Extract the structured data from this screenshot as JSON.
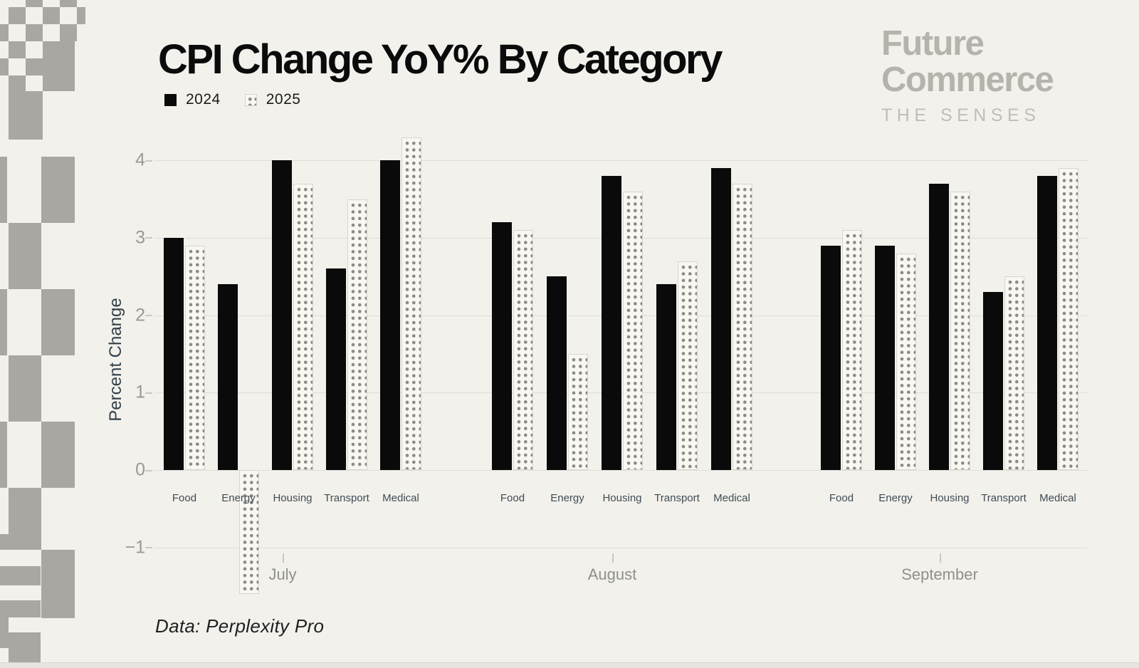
{
  "title": "CPI Change YoY% By Category",
  "legend": {
    "items": [
      {
        "label": "2024",
        "style": "solid"
      },
      {
        "label": "2025",
        "style": "dotted"
      }
    ]
  },
  "brand": {
    "line1": "Future",
    "line2": "Commerce",
    "tagline": "THE SENSES"
  },
  "y_axis": {
    "label": "Percent Change",
    "ticks": [
      {
        "value": 4,
        "label": "4"
      },
      {
        "value": 3,
        "label": "3"
      },
      {
        "value": 2,
        "label": "2"
      },
      {
        "value": 1,
        "label": "1"
      },
      {
        "value": 0,
        "label": "0"
      },
      {
        "value": -1,
        "label": "−1"
      }
    ]
  },
  "source": "Data: Perplexity Pro",
  "chart_data": {
    "type": "bar",
    "title": "CPI Change YoY% By Category",
    "ylabel": "Percent Change",
    "ylim": [
      -1.6,
      4.4
    ],
    "grid": true,
    "legend_position": "top-left",
    "group_labels": [
      "July",
      "August",
      "September"
    ],
    "categories": [
      "Food",
      "Energy",
      "Housing",
      "Transport",
      "Medical"
    ],
    "series": [
      {
        "name": "2024",
        "style": "solid-black",
        "values": [
          [
            3.0,
            2.4,
            4.0,
            2.6,
            4.0
          ],
          [
            3.2,
            2.5,
            3.8,
            2.4,
            3.9
          ],
          [
            2.9,
            2.9,
            3.7,
            2.3,
            3.8
          ]
        ]
      },
      {
        "name": "2025",
        "style": "dotted",
        "values": [
          [
            2.9,
            -1.6,
            3.7,
            3.5,
            4.3
          ],
          [
            3.1,
            1.5,
            3.6,
            2.7,
            3.7
          ],
          [
            3.1,
            2.8,
            3.6,
            2.5,
            3.9
          ]
        ]
      }
    ]
  },
  "colors": {
    "background": "#f2f1ec",
    "decor_gray": "#a8a7a1",
    "bar_2024": "#0a0a0a",
    "bar_2025_dot": "#8b8a84",
    "bar_2025_bg": "#f8f7f2",
    "gridline": "#deddd6",
    "tick_label": "#9a9993",
    "category_label": "#414c54",
    "month_label": "#90908a",
    "axis_title": "#32404a",
    "brand_gray": "#b4b3ac",
    "title_black": "#0b0b0b"
  },
  "decor": {
    "rects": [
      [
        36,
        0,
        24,
        10
      ],
      [
        84,
        0,
        24,
        10
      ],
      [
        12,
        10,
        24,
        24
      ],
      [
        60,
        10,
        24,
        24
      ],
      [
        108,
        10,
        12,
        24
      ],
      [
        0,
        34,
        12,
        24
      ],
      [
        36,
        34,
        24,
        24
      ],
      [
        84,
        34,
        24,
        24
      ],
      [
        12,
        58,
        24,
        24
      ],
      [
        60,
        58,
        45,
        70
      ],
      [
        0,
        82,
        12,
        24
      ],
      [
        36,
        82,
        24,
        24
      ],
      [
        12,
        106,
        24,
        22
      ],
      [
        12,
        128,
        48,
        68
      ],
      [
        0,
        220,
        10,
        93
      ],
      [
        58,
        220,
        47,
        93
      ],
      [
        12,
        313,
        46,
        93
      ],
      [
        0,
        406,
        10,
        93
      ],
      [
        58,
        406,
        47,
        93
      ],
      [
        12,
        499,
        46,
        93
      ],
      [
        0,
        592,
        10,
        93
      ],
      [
        58,
        592,
        47,
        93
      ],
      [
        12,
        685,
        46,
        87
      ],
      [
        0,
        750,
        57,
        22
      ],
      [
        58,
        772,
        47,
        96
      ],
      [
        0,
        795,
        57,
        27
      ],
      [
        0,
        843,
        57,
        24
      ],
      [
        0,
        867,
        12,
        21
      ],
      [
        0,
        888,
        12,
        22
      ],
      [
        12,
        888,
        45,
        50
      ]
    ]
  }
}
